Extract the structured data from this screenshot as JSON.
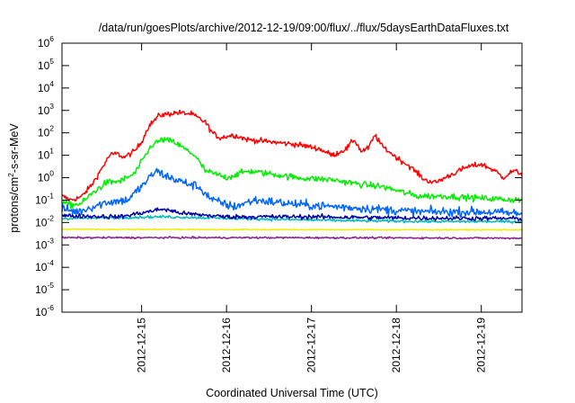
{
  "chart_data": {
    "type": "line",
    "title": "/data/run/goesPlots/archive/2012-12-19/09:00/flux/../flux/5daysEarthDataFluxes.txt",
    "xlabel": "Coordinated Universal Time (UTC)",
    "ylabel_parts": [
      "protons/cm",
      "2",
      "-s-sr-MeV"
    ],
    "yscale": "log",
    "ylim": [
      1e-06,
      1000000.0
    ],
    "y_ticks": [
      {
        "base": "10",
        "exp": "-6",
        "value": 1e-06
      },
      {
        "base": "10",
        "exp": "-5",
        "value": 1e-05
      },
      {
        "base": "10",
        "exp": "-4",
        "value": 0.0001
      },
      {
        "base": "10",
        "exp": "-3",
        "value": 0.001
      },
      {
        "base": "10",
        "exp": "-2",
        "value": 0.01
      },
      {
        "base": "10",
        "exp": "-1",
        "value": 0.1
      },
      {
        "base": "10",
        "exp": "0",
        "value": 1
      },
      {
        "base": "10",
        "exp": "1",
        "value": 10.0
      },
      {
        "base": "10",
        "exp": "2",
        "value": 100.0
      },
      {
        "base": "10",
        "exp": "3",
        "value": 1000.0
      },
      {
        "base": "10",
        "exp": "4",
        "value": 10000.0
      },
      {
        "base": "10",
        "exp": "5",
        "value": 100000.0
      },
      {
        "base": "10",
        "exp": "6",
        "value": 1000000.0
      }
    ],
    "xlim": [
      "2012-12-14T01:30",
      "2012-12-19T11:30"
    ],
    "x_ticks": [
      {
        "label": "2012-12-15",
        "value": "2012-12-15T00:00"
      },
      {
        "label": "2012-12-16",
        "value": "2012-12-16T00:00"
      },
      {
        "label": "2012-12-17",
        "value": "2012-12-17T00:00"
      },
      {
        "label": "2012-12-18",
        "value": "2012-12-18T00:00"
      },
      {
        "label": "2012-12-19",
        "value": "2012-12-19T00:00"
      }
    ],
    "grid": false,
    "legend": "none",
    "series": [
      {
        "color": "#ff0000",
        "noise": 0.12,
        "points": [
          [
            "2012-12-14T01:30",
            0.15
          ],
          [
            "2012-12-14T04:00",
            0.1
          ],
          [
            "2012-12-14T07:00",
            0.14
          ],
          [
            "2012-12-14T10:00",
            0.5
          ],
          [
            "2012-12-14T13:00",
            3
          ],
          [
            "2012-12-14T15:00",
            10
          ],
          [
            "2012-12-14T17:00",
            12
          ],
          [
            "2012-12-14T19:00",
            8
          ],
          [
            "2012-12-14T22:00",
            15
          ],
          [
            "2012-12-15T00:00",
            40
          ],
          [
            "2012-12-15T02:00",
            200
          ],
          [
            "2012-12-15T05:00",
            600
          ],
          [
            "2012-12-15T10:00",
            800
          ],
          [
            "2012-12-15T14:00",
            700
          ],
          [
            "2012-12-15T18:00",
            300
          ],
          [
            "2012-12-15T20:00",
            100
          ],
          [
            "2012-12-15T22:00",
            60
          ],
          [
            "2012-12-16T02:00",
            80
          ],
          [
            "2012-12-16T06:00",
            50
          ],
          [
            "2012-12-16T12:00",
            40
          ],
          [
            "2012-12-16T20:00",
            30
          ],
          [
            "2012-12-17T02:00",
            20
          ],
          [
            "2012-12-17T06:00",
            10
          ],
          [
            "2012-12-17T10:00",
            20
          ],
          [
            "2012-12-17T12:00",
            50
          ],
          [
            "2012-12-17T13:00",
            30
          ],
          [
            "2012-12-17T14:00",
            15
          ],
          [
            "2012-12-17T16:00",
            20
          ],
          [
            "2012-12-17T18:00",
            80
          ],
          [
            "2012-12-17T20:00",
            25
          ],
          [
            "2012-12-18T00:00",
            8
          ],
          [
            "2012-12-18T04:00",
            3
          ],
          [
            "2012-12-18T08:00",
            0.8
          ],
          [
            "2012-12-18T11:00",
            0.6
          ],
          [
            "2012-12-18T16:00",
            1.5
          ],
          [
            "2012-12-18T20:00",
            3
          ],
          [
            "2012-12-19T00:00",
            4
          ],
          [
            "2012-12-19T04:00",
            2
          ],
          [
            "2012-12-19T06:00",
            1
          ],
          [
            "2012-12-19T09:00",
            2
          ],
          [
            "2012-12-19T11:30",
            1.5
          ]
        ]
      },
      {
        "color": "#00ee00",
        "noise": 0.14,
        "points": [
          [
            "2012-12-14T01:30",
            0.08
          ],
          [
            "2012-12-14T04:00",
            0.06
          ],
          [
            "2012-12-14T07:00",
            0.07
          ],
          [
            "2012-12-14T10:00",
            0.2
          ],
          [
            "2012-12-14T14:00",
            0.6
          ],
          [
            "2012-12-14T18:00",
            0.7
          ],
          [
            "2012-12-14T22:00",
            1.5
          ],
          [
            "2012-12-15T00:00",
            5
          ],
          [
            "2012-12-15T03:00",
            30
          ],
          [
            "2012-12-15T06:00",
            50
          ],
          [
            "2012-12-15T09:00",
            40
          ],
          [
            "2012-12-15T12:00",
            20
          ],
          [
            "2012-12-15T15:00",
            10
          ],
          [
            "2012-12-15T18:00",
            2
          ],
          [
            "2012-12-16T00:00",
            1
          ],
          [
            "2012-12-16T06:00",
            2
          ],
          [
            "2012-12-16T12:00",
            1.5
          ],
          [
            "2012-12-16T20:00",
            1
          ],
          [
            "2012-12-17T06:00",
            0.8
          ],
          [
            "2012-12-17T14:00",
            0.5
          ],
          [
            "2012-12-17T20:00",
            0.4
          ],
          [
            "2012-12-18T06:00",
            0.15
          ],
          [
            "2012-12-18T14:00",
            0.15
          ],
          [
            "2012-12-19T00:00",
            0.12
          ],
          [
            "2012-12-19T11:30",
            0.1
          ]
        ]
      },
      {
        "color": "#0066ff",
        "noise": 0.2,
        "points": [
          [
            "2012-12-14T01:30",
            0.04
          ],
          [
            "2012-12-14T06:00",
            0.03
          ],
          [
            "2012-12-14T10:00",
            0.05
          ],
          [
            "2012-12-14T14:00",
            0.08
          ],
          [
            "2012-12-14T20:00",
            0.1
          ],
          [
            "2012-12-15T00:00",
            0.4
          ],
          [
            "2012-12-15T04:00",
            2
          ],
          [
            "2012-12-15T08:00",
            1
          ],
          [
            "2012-12-15T12:00",
            0.6
          ],
          [
            "2012-12-15T16:00",
            0.4
          ],
          [
            "2012-12-15T20:00",
            0.1
          ],
          [
            "2012-12-16T02:00",
            0.05
          ],
          [
            "2012-12-16T08:00",
            0.1
          ],
          [
            "2012-12-16T14:00",
            0.08
          ],
          [
            "2012-12-16T22:00",
            0.06
          ],
          [
            "2012-12-17T08:00",
            0.05
          ],
          [
            "2012-12-17T18:00",
            0.04
          ],
          [
            "2012-12-18T06:00",
            0.03
          ],
          [
            "2012-12-19T00:00",
            0.03
          ],
          [
            "2012-12-19T11:30",
            0.025
          ]
        ]
      },
      {
        "color": "#00bbbb",
        "noise": 0.06,
        "points": [
          [
            "2012-12-14T01:30",
            0.015
          ],
          [
            "2012-12-15T06:00",
            0.018
          ],
          [
            "2012-12-16T12:00",
            0.014
          ],
          [
            "2012-12-17T12:00",
            0.012
          ],
          [
            "2012-12-18T12:00",
            0.011
          ],
          [
            "2012-12-19T11:30",
            0.011
          ]
        ]
      },
      {
        "color": "#0000aa",
        "noise": 0.1,
        "points": [
          [
            "2012-12-14T01:30",
            0.02
          ],
          [
            "2012-12-14T18:00",
            0.018
          ],
          [
            "2012-12-15T06:00",
            0.04
          ],
          [
            "2012-12-15T12:00",
            0.025
          ],
          [
            "2012-12-16T00:00",
            0.018
          ],
          [
            "2012-12-17T00:00",
            0.018
          ],
          [
            "2012-12-18T00:00",
            0.016
          ],
          [
            "2012-12-19T11:30",
            0.015
          ]
        ]
      },
      {
        "color": "#eeee00",
        "noise": 0.025,
        "points": [
          [
            "2012-12-14T01:30",
            0.005
          ],
          [
            "2012-12-17T00:00",
            0.0048
          ],
          [
            "2012-12-19T11:30",
            0.0047
          ]
        ]
      },
      {
        "color": "#882288",
        "noise": 0.04,
        "points": [
          [
            "2012-12-14T01:30",
            0.0021
          ],
          [
            "2012-12-17T00:00",
            0.0021
          ],
          [
            "2012-12-19T11:30",
            0.002
          ]
        ]
      }
    ]
  }
}
